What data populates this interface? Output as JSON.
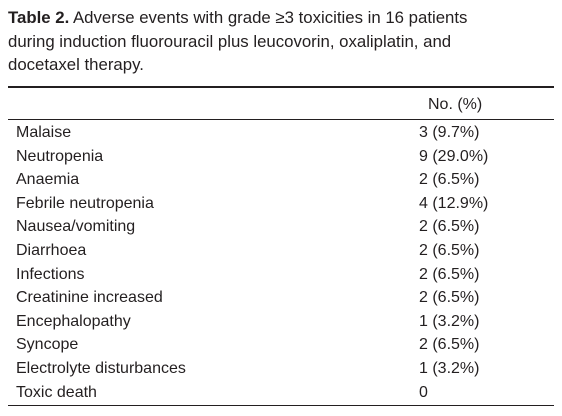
{
  "caption": {
    "label": "Table 2.",
    "lines": [
      " Adverse events with grade ≥3 toxicities in 16 patients",
      "during induction fluorouracil plus leucovorin, oxaliplatin, and",
      "docetaxel therapy."
    ]
  },
  "table": {
    "header": [
      "",
      "No. (%)"
    ],
    "rows": [
      [
        "Malaise",
        "3 (9.7%)"
      ],
      [
        "Neutropenia",
        "9 (29.0%)"
      ],
      [
        "Anaemia",
        "2 (6.5%)"
      ],
      [
        "Febrile neutropenia",
        "4 (12.9%)"
      ],
      [
        "Nausea/vomiting",
        "2 (6.5%)"
      ],
      [
        "Diarrhoea",
        "2 (6.5%)"
      ],
      [
        "Infections",
        "2 (6.5%)"
      ],
      [
        "Creatinine increased",
        "2 (6.5%)"
      ],
      [
        "Encephalopathy",
        "1 (3.2%)"
      ],
      [
        "Syncope",
        "2 (6.5%)"
      ],
      [
        "Electrolyte disturbances",
        "1 (3.2%)"
      ],
      [
        "Toxic death",
        "0"
      ]
    ]
  }
}
